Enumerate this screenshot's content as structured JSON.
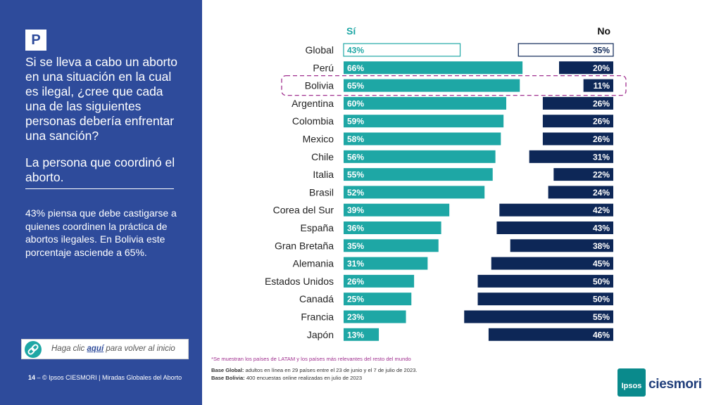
{
  "sidebar": {
    "badge": "P",
    "question": "Si se lleva a cabo un aborto en una situación en la cual es ilegal, ¿cree que cada una de las siguientes personas debería enfrentar una sanción?",
    "subject": "La persona que coordinó el aborto.",
    "insight": "43% piensa que debe castigarse a quienes coordinen la práctica de abortos ilegales. En Bolivia este porcentaje asciende a 65%.",
    "back_prefix": "Haga clic ",
    "back_link": "aquí",
    "back_suffix": " para volver al inicio",
    "back_icon": "link-icon"
  },
  "footer": {
    "page_number": "14",
    "page_sep": " – ",
    "copyright": "© Ipsos CIESMORI | Miradas Globales del Aborto"
  },
  "notes": {
    "latam_note": "*Se muestran los países de LATAM y los países más relevantes del resto del mundo",
    "base_global_label": "Base Global:",
    "base_global_text": " adultos en línea en 29 países entre el 23 de junio y el 7 de julio de 2023.",
    "base_bolivia_label": "Base Bolivia:",
    "base_bolivia_text": " 400 encuestas online realizadas en julio de 2023"
  },
  "logo": {
    "ipsos": "Ipsos",
    "ciesmori": "ciesmori"
  },
  "colors": {
    "sidebar_bg": "#2e4b9b",
    "si_bar": "#1ea7a5",
    "no_bar": "#0d2757",
    "highlight_border": "#a0308f"
  },
  "chart_data": {
    "type": "bar",
    "orientation": "horizontal-diverging",
    "unit": "%",
    "categories": [
      "Global",
      "Perú",
      "Bolivia",
      "Argentina",
      "Colombia",
      "Mexico",
      "Chile",
      "Italia",
      "Brasil",
      "Corea del Sur",
      "España",
      "Gran Bretaña",
      "Alemania",
      "Estados Unidos",
      "Canadá",
      "Francia",
      "Japón"
    ],
    "series": [
      {
        "name": "Sí",
        "values": [
          43,
          66,
          65,
          60,
          59,
          58,
          56,
          55,
          52,
          39,
          36,
          35,
          31,
          26,
          25,
          23,
          13
        ],
        "labels": [
          "43%",
          "66%",
          "65%",
          "60%",
          "59%",
          "58%",
          "56%",
          "55%",
          "52%",
          "39%",
          "36%",
          "35%",
          "31%",
          "26%",
          "25%",
          "23%",
          "13%"
        ]
      },
      {
        "name": "No",
        "values": [
          35,
          20,
          11,
          26,
          26,
          26,
          31,
          22,
          24,
          42,
          43,
          38,
          45,
          50,
          50,
          55,
          46
        ],
        "labels": [
          "35%",
          "20%",
          "11%",
          "26%",
          "26%",
          "26%",
          "31%",
          "22%",
          "24%",
          "42%",
          "43%",
          "38%",
          "45%",
          "50%",
          "50%",
          "55%",
          "46%"
        ]
      }
    ],
    "outlined_category": "Global",
    "highlighted_category": "Bolivia",
    "xlim": [
      0,
      100
    ],
    "grid": false,
    "legend": "top"
  }
}
